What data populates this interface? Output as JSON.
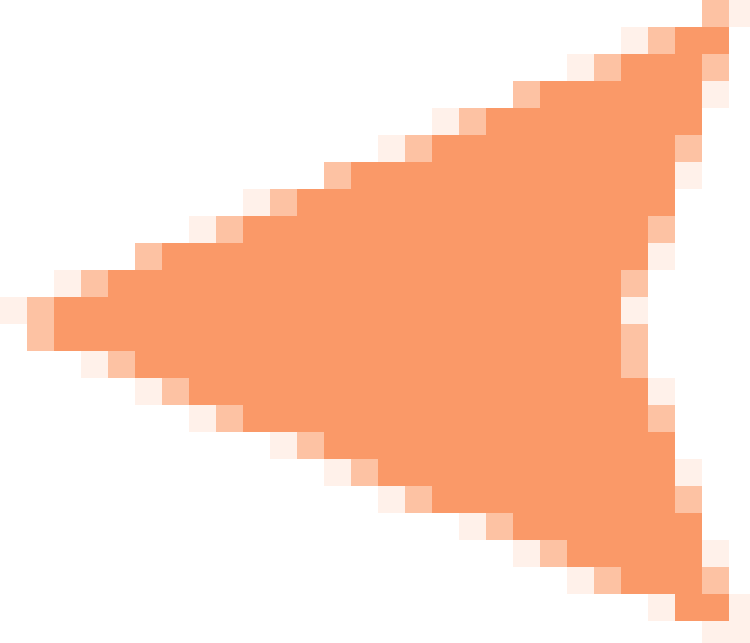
{
  "icon": {
    "name": "pixelated-triangle-arrow-icon",
    "colors": {
      "fill": "#FA9968",
      "edge_light": "#FDC2A3",
      "edge_faint": "#FFF1EA",
      "background": "#FFFFFF"
    }
  }
}
